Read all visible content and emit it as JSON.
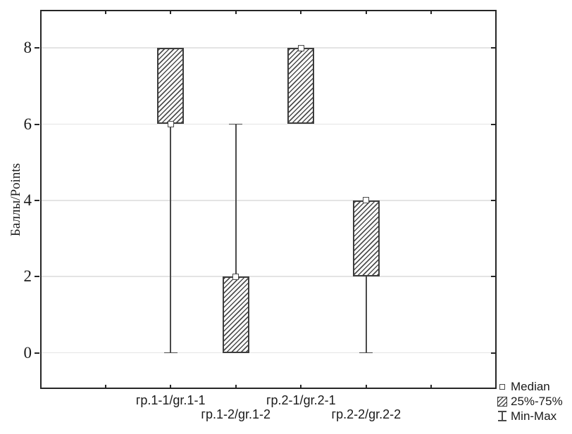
{
  "chart_data": {
    "type": "box",
    "ylabel": "Баллы/Points",
    "yticks": [
      0,
      2,
      4,
      6,
      8
    ],
    "ylim": [
      -0.95,
      9.0
    ],
    "grid": "horizontal",
    "categories": [
      "гр.1-1/gr.1-1",
      "гр.1-2/gr.1-2",
      "гр.2-1/gr.2-1",
      "гр.2-2/gr.2-2"
    ],
    "boxes": [
      {
        "category": "гр.1-1/gr.1-1",
        "median": 6,
        "q1": 6,
        "q3": 8,
        "min": 0,
        "max": 8
      },
      {
        "category": "гр.1-2/gr.1-2",
        "median": 2,
        "q1": 0,
        "q3": 2,
        "min": 0,
        "max": 6
      },
      {
        "category": "гр.2-1/gr.2-1",
        "median": 8,
        "q1": 6,
        "q3": 8,
        "min": 6,
        "max": 8
      },
      {
        "category": "гр.2-2/gr.2-2",
        "median": 4,
        "q1": 2,
        "q3": 4,
        "min": 0,
        "max": 4
      }
    ],
    "legend": {
      "position": "bottom-right",
      "entries": [
        {
          "label": "Median",
          "marker": "open-square"
        },
        {
          "label": "25%-75%",
          "marker": "hatched-box"
        },
        {
          "label": "Min-Max",
          "marker": "whisker"
        }
      ]
    },
    "layout": {
      "x_slots": 7,
      "x_tick_slots": [
        1,
        2,
        3,
        4,
        5,
        6
      ],
      "box_slots": [
        2,
        3,
        4,
        5
      ],
      "x_label_rows": [
        0,
        1,
        0,
        1
      ]
    },
    "colors": {
      "background": "#ffffff",
      "axis": "#262626",
      "grid": "#e4e4e4",
      "box_border": "#3d3d3d",
      "hatch": "#4d4d4d",
      "whisker": "#4a4a4a",
      "text": "#1a1a1a"
    }
  }
}
